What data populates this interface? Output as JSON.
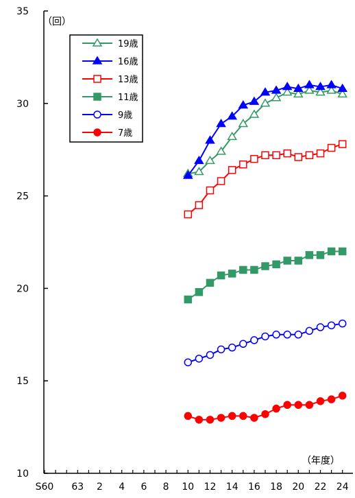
{
  "chart_data": {
    "type": "line",
    "y_unit_label": "（回）",
    "x_unit_label": "（年度）",
    "ylim": [
      10,
      35
    ],
    "y_ticks": [
      10,
      15,
      20,
      25,
      30,
      35
    ],
    "x_tick_labels": [
      "S60",
      "63",
      "2",
      "4",
      "6",
      "8",
      "10",
      "12",
      "14",
      "16",
      "18",
      "20",
      "22",
      "24"
    ],
    "x_minor_tick_count": 28,
    "x_values": [
      "10",
      "11",
      "12",
      "13",
      "14",
      "15",
      "16",
      "17",
      "18",
      "19",
      "20",
      "21",
      "22",
      "23",
      "24"
    ],
    "grid": false,
    "legend_position": "top-left",
    "series": [
      {
        "name": "19歳",
        "color": "#339966",
        "marker": "triangle-open",
        "values": [
          26.2,
          26.3,
          26.9,
          27.4,
          28.2,
          28.9,
          29.4,
          30.0,
          30.3,
          30.6,
          30.5,
          30.7,
          30.6,
          30.7,
          30.5
        ]
      },
      {
        "name": "16歳",
        "color": "#0000ff",
        "marker": "triangle-filled",
        "values": [
          26.1,
          26.9,
          28.0,
          28.9,
          29.3,
          29.9,
          30.1,
          30.6,
          30.7,
          30.9,
          30.8,
          31.0,
          30.9,
          31.0,
          30.8
        ]
      },
      {
        "name": "13歳",
        "color": "#ff0000",
        "marker": "square-open",
        "values": [
          24.0,
          24.5,
          25.3,
          25.8,
          26.4,
          26.7,
          27.0,
          27.2,
          27.2,
          27.3,
          27.1,
          27.2,
          27.3,
          27.6,
          27.8
        ]
      },
      {
        "name": "11歳",
        "color": "#339966",
        "marker": "square-filled",
        "values": [
          19.4,
          19.8,
          20.3,
          20.7,
          20.8,
          21.0,
          21.0,
          21.2,
          21.3,
          21.5,
          21.5,
          21.8,
          21.8,
          22.0,
          22.0
        ]
      },
      {
        "name": "9歳",
        "color": "#0000ff",
        "marker": "circle-open",
        "values": [
          16.0,
          16.2,
          16.4,
          16.7,
          16.8,
          17.0,
          17.2,
          17.4,
          17.5,
          17.5,
          17.5,
          17.7,
          17.9,
          18.0,
          18.1
        ]
      },
      {
        "name": "7歳",
        "color": "#ff0000",
        "marker": "circle-filled",
        "values": [
          13.1,
          12.9,
          12.9,
          13.0,
          13.1,
          13.1,
          13.0,
          13.2,
          13.5,
          13.7,
          13.7,
          13.7,
          13.9,
          14.0,
          14.2
        ]
      }
    ]
  }
}
